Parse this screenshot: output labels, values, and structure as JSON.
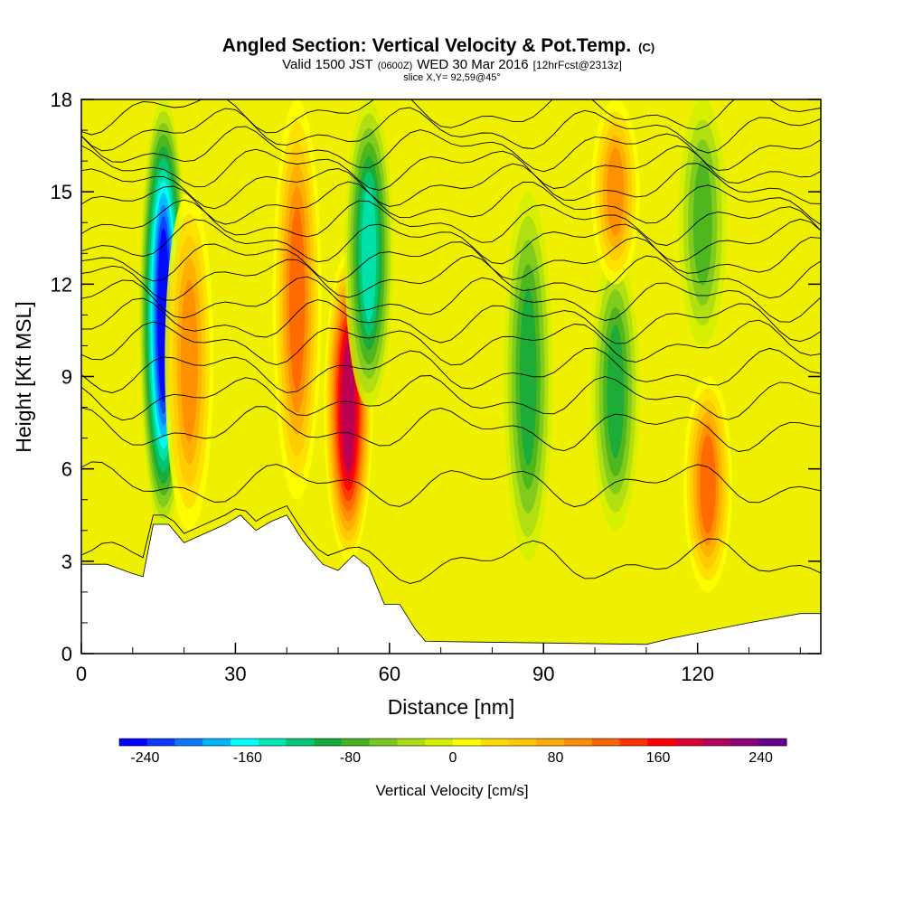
{
  "header": {
    "title": "Angled Section: Vertical Velocity & Pot.Temp.",
    "title_tag": "(C)",
    "valid_prefix": "Valid 1500 JST",
    "valid_utc": "(0600Z)",
    "valid_date": "WED 30 Mar 2016",
    "forecast": "[12hrFcst@2313z]",
    "slice": "slice X,Y= 92,59@45°"
  },
  "chart_data": {
    "type": "heatmap",
    "xlabel": "Distance [nm]",
    "ylabel": "Height [Kft MSL]",
    "xlim": [
      0,
      144
    ],
    "ylim": [
      0,
      18
    ],
    "x_ticks": [
      0,
      30,
      60,
      90,
      120
    ],
    "y_ticks": [
      0,
      3,
      6,
      9,
      12,
      15,
      18
    ],
    "terrain_top_kft": [
      [
        0,
        2.9
      ],
      [
        5,
        2.9
      ],
      [
        10,
        2.6
      ],
      [
        12,
        2.5
      ],
      [
        14,
        4.2
      ],
      [
        17,
        4.2
      ],
      [
        20,
        3.6
      ],
      [
        24,
        3.9
      ],
      [
        28,
        4.2
      ],
      [
        31,
        4.5
      ],
      [
        34,
        4.0
      ],
      [
        37,
        4.3
      ],
      [
        40,
        4.5
      ],
      [
        43,
        3.7
      ],
      [
        47,
        2.9
      ],
      [
        50,
        2.7
      ],
      [
        53,
        3.2
      ],
      [
        56,
        2.8
      ],
      [
        59,
        1.6
      ],
      [
        62,
        1.6
      ],
      [
        65,
        0.8
      ],
      [
        67,
        0.4
      ],
      [
        110,
        0.3
      ],
      [
        115,
        0.5
      ],
      [
        130,
        1.0
      ],
      [
        140,
        1.3
      ],
      [
        144,
        1.3
      ]
    ],
    "vertical_velocity_features": [
      {
        "x": 16,
        "base_kft": 4,
        "top_kft": 18,
        "value_cm_s": -240
      },
      {
        "x": 21,
        "base_kft": 4,
        "top_kft": 15,
        "value_cm_s": 100
      },
      {
        "x": 42,
        "base_kft": 5,
        "top_kft": 18,
        "value_cm_s": 120
      },
      {
        "x": 52,
        "base_kft": 3,
        "top_kft": 13,
        "value_cm_s": 190
      },
      {
        "x": 56,
        "base_kft": 8,
        "top_kft": 18,
        "value_cm_s": -130
      },
      {
        "x": 87,
        "base_kft": 3,
        "top_kft": 15,
        "value_cm_s": -90
      },
      {
        "x": 104,
        "base_kft": 4,
        "top_kft": 13,
        "value_cm_s": -100
      },
      {
        "x": 104,
        "base_kft": 12,
        "top_kft": 18,
        "value_cm_s": 90
      },
      {
        "x": 122,
        "base_kft": 2,
        "top_kft": 9,
        "value_cm_s": 110
      },
      {
        "x": 121,
        "base_kft": 10,
        "top_kft": 18,
        "value_cm_s": -80
      }
    ],
    "isentrope_levels_kft": [
      3,
      5.5,
      7.3,
      8.3,
      9.2,
      10.1,
      10.8,
      11.5,
      12.2,
      12.8,
      13.4,
      14.0,
      14.6,
      15.2,
      15.8,
      16.4,
      17.0,
      17.6
    ]
  },
  "colorbar": {
    "label": "Vertical Velocity [cm/s]",
    "range": [
      -260,
      260
    ],
    "tick_values": [
      -240,
      -160,
      -80,
      0,
      80,
      160,
      240
    ],
    "tick_labels": [
      "-240",
      "-160",
      "-80",
      "0",
      "80",
      "160",
      "240"
    ],
    "colors": [
      "#0000ff",
      "#0a3cff",
      "#0a78ff",
      "#00b4ff",
      "#00ffff",
      "#00e6b4",
      "#00c878",
      "#14aa3c",
      "#46b41e",
      "#78c81e",
      "#aadc14",
      "#d2f000",
      "#ffff00",
      "#ffdc00",
      "#ffc800",
      "#ffaa00",
      "#ff8c00",
      "#ff6400",
      "#ff3200",
      "#ff0000",
      "#dc0032",
      "#b4005a",
      "#8c0078",
      "#64008c"
    ]
  }
}
